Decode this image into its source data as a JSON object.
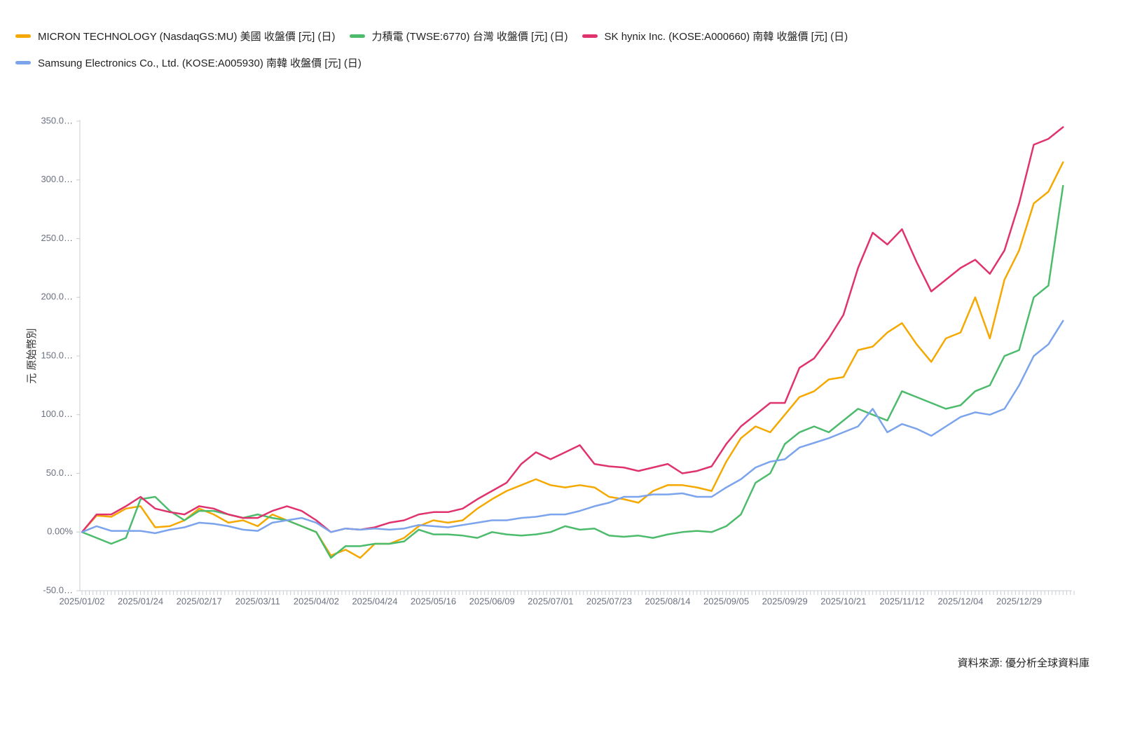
{
  "chart_data": {
    "type": "line",
    "y_label": "元 原始幣別",
    "source": "資料來源: 優分析全球資料庫",
    "categories": [
      "2025/01/02",
      null,
      null,
      null,
      "2025/01/24",
      null,
      null,
      null,
      "2025/02/17",
      null,
      null,
      null,
      "2025/03/11",
      null,
      null,
      null,
      "2025/04/02",
      null,
      null,
      null,
      "2025/04/24",
      null,
      null,
      null,
      "2025/05/16",
      null,
      null,
      null,
      "2025/06/09",
      null,
      null,
      null,
      "2025/07/01",
      null,
      null,
      null,
      "2025/07/23",
      null,
      null,
      null,
      "2025/08/14",
      null,
      null,
      null,
      "2025/09/05",
      null,
      null,
      null,
      "2025/09/29",
      null,
      null,
      null,
      "2025/10/21",
      null,
      null,
      null,
      "2025/11/12",
      null,
      null,
      null,
      "2025/12/04",
      null,
      null,
      null,
      "2025/12/29",
      null,
      null,
      null
    ],
    "series": [
      {
        "name": "MICRON TECHNOLOGY (NasdaqGS:MU) 美國 收盤價 [元] (日)",
        "color": "#f5a800",
        "values": [
          0,
          14,
          13,
          20,
          22,
          4,
          5,
          10,
          20,
          15,
          8,
          10,
          5,
          15,
          10,
          5,
          0,
          -20,
          -15,
          -22,
          -10,
          -10,
          -5,
          5,
          10,
          8,
          10,
          20,
          28,
          35,
          40,
          45,
          40,
          38,
          40,
          38,
          30,
          28,
          25,
          35,
          40,
          40,
          38,
          35,
          60,
          80,
          90,
          85,
          100,
          115,
          120,
          130,
          132,
          155,
          158,
          170,
          178,
          160,
          145,
          165,
          170,
          200,
          165,
          215,
          240,
          280,
          290,
          315
        ]
      },
      {
        "name": "力積電 (TWSE:6770) 台灣 收盤價 [元] (日)",
        "color": "#4cbb6c",
        "values": [
          0,
          -5,
          -10,
          -5,
          28,
          30,
          18,
          10,
          18,
          18,
          15,
          12,
          15,
          12,
          10,
          5,
          0,
          -22,
          -12,
          -12,
          -10,
          -10,
          -8,
          2,
          -2,
          -2,
          -3,
          -5,
          0,
          -2,
          -3,
          -2,
          0,
          5,
          2,
          3,
          -3,
          -4,
          -3,
          -5,
          -2,
          0,
          1,
          0,
          5,
          15,
          42,
          50,
          75,
          85,
          90,
          85,
          95,
          105,
          100,
          95,
          120,
          115,
          110,
          105,
          108,
          120,
          125,
          150,
          155,
          200,
          210,
          295
        ]
      },
      {
        "name": "SK hynix Inc. (KOSE:A000660) 南韓 收盤價 [元] (日)",
        "color": "#e0336e",
        "values": [
          0,
          15,
          15,
          22,
          30,
          20,
          17,
          15,
          22,
          20,
          15,
          12,
          12,
          18,
          22,
          18,
          10,
          0,
          3,
          2,
          4,
          8,
          10,
          15,
          17,
          17,
          20,
          28,
          35,
          42,
          58,
          68,
          62,
          68,
          74,
          58,
          56,
          55,
          52,
          55,
          58,
          50,
          52,
          56,
          75,
          90,
          100,
          110,
          110,
          140,
          148,
          165,
          185,
          225,
          255,
          245,
          258,
          230,
          205,
          215,
          225,
          232,
          220,
          240,
          280,
          330,
          335,
          345
        ]
      },
      {
        "name": "Samsung Electronics Co., Ltd. (KOSE:A005930) 南韓 收盤價 [元] (日)",
        "color": "#7ba4ec",
        "values": [
          0,
          5,
          1,
          1,
          1,
          -1,
          2,
          4,
          8,
          7,
          5,
          2,
          1,
          8,
          10,
          12,
          8,
          0,
          3,
          2,
          3,
          2,
          3,
          6,
          5,
          4,
          6,
          8,
          10,
          10,
          12,
          13,
          15,
          15,
          18,
          22,
          25,
          30,
          30,
          32,
          32,
          33,
          30,
          30,
          38,
          45,
          55,
          60,
          62,
          72,
          76,
          80,
          85,
          90,
          105,
          85,
          92,
          88,
          82,
          90,
          98,
          102,
          100,
          105,
          125,
          150,
          160,
          180
        ]
      }
    ],
    "ylim": [
      -50,
      350
    ],
    "yticks": [
      {
        "value": -50,
        "label": "-50.0…"
      },
      {
        "value": 0,
        "label": "0.00%"
      },
      {
        "value": 50,
        "label": "50.0…"
      },
      {
        "value": 100,
        "label": "100.0…"
      },
      {
        "value": 150,
        "label": "150.0…"
      },
      {
        "value": 200,
        "label": "200.0…"
      },
      {
        "value": 250,
        "label": "250.0…"
      },
      {
        "value": 300,
        "label": "300.0…"
      },
      {
        "value": 350,
        "label": "350.0…"
      }
    ]
  }
}
